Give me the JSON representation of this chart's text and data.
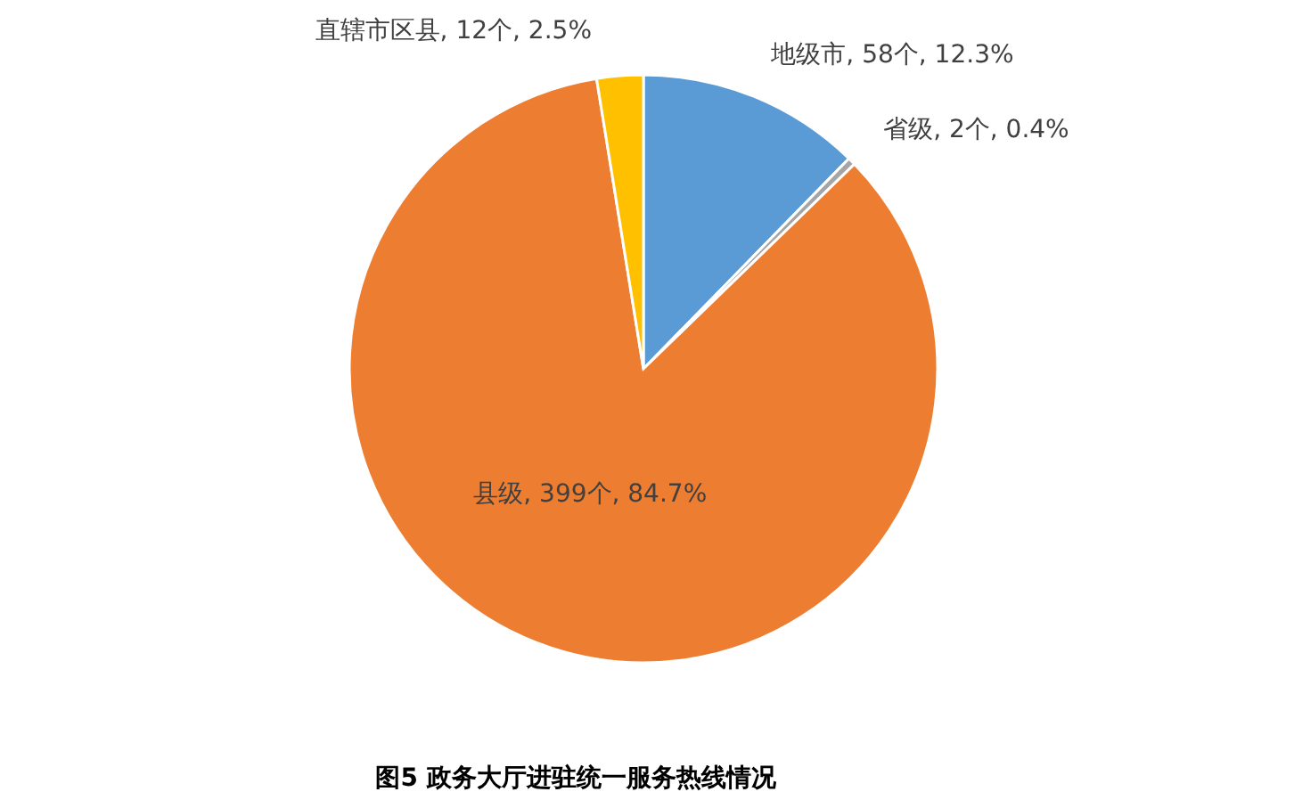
{
  "chart_data": {
    "type": "pie",
    "title": "图5 政务大厅进驻统一服务热线情况",
    "categories": [
      "地级市",
      "省级",
      "县级",
      "直辖市区县"
    ],
    "values": [
      58,
      2,
      399,
      12
    ],
    "colors": [
      "#5b9bd5",
      "#a5a5a5",
      "#ed7d31",
      "#ffc000"
    ],
    "value_labels": [
      ", 58个, 12.3%",
      ", 2个, 0.4%",
      ", 399个, 84.7%",
      ", 12个, 2.5%"
    ]
  }
}
